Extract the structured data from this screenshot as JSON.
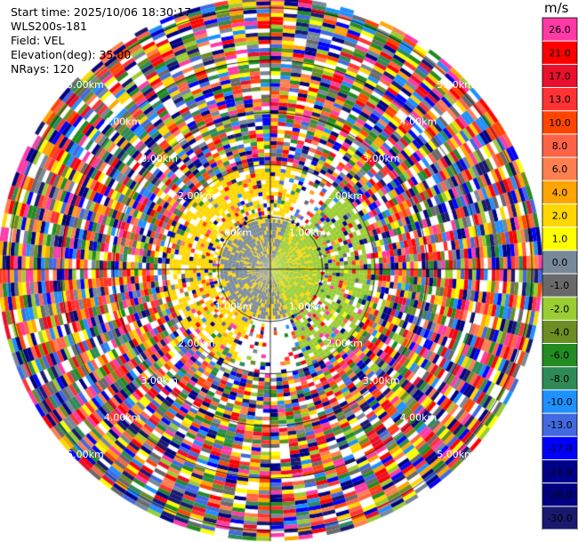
{
  "info": {
    "start_time": "Start time: 2025/10/06 18:30:17",
    "instrument": "WLS200s-181",
    "field": "Field: VEL",
    "elevation": "Elevation(deg): 35.00",
    "nrays": "NRays: 120"
  },
  "colorbar": {
    "unit": "m/s",
    "levels": [
      "26.0",
      "21.0",
      "17.0",
      "13.0",
      "10.0",
      "8.0",
      "6.0",
      "4.0",
      "2.0",
      "1.0",
      "0.0",
      "-1.0",
      "-2.0",
      "-4.0",
      "-6.0",
      "-8.0",
      "-10.0",
      "-13.0",
      "-17.0",
      "-21.0",
      "-26.0",
      "-30.0"
    ],
    "colors": [
      "#ff3aa7",
      "#ff0000",
      "#e8102c",
      "#ff3333",
      "#ff4500",
      "#ff6347",
      "#ff7f50",
      "#ffa500",
      "#ffd700",
      "#ffff00",
      "#778899",
      "#696969",
      "#9acd32",
      "#6b8e23",
      "#228b22",
      "#2e8b57",
      "#1e90ff",
      "#4169e1",
      "#0000ff",
      "#00008b",
      "#000080",
      "#191970"
    ]
  },
  "chart_data": {
    "type": "ppi",
    "field": "VEL",
    "unit": "m/s",
    "elevation_deg": 35.0,
    "nrays": 120,
    "range_ring_labels": [
      "1.00km",
      "2.00km",
      "3.00km",
      "4.00km",
      "5.00km"
    ],
    "range_rings_km": [
      1,
      2,
      3,
      4,
      5
    ],
    "max_range_km": 5.2,
    "near_range_note": "yellow (2-4 m/s) ring cells near 1-2 km on north and west sides; green (-1 to -4 m/s) on east side; noisy multicolor beyond ~2 km",
    "ring_label_angles_deg": [
      315,
      45,
      225,
      135
    ]
  }
}
